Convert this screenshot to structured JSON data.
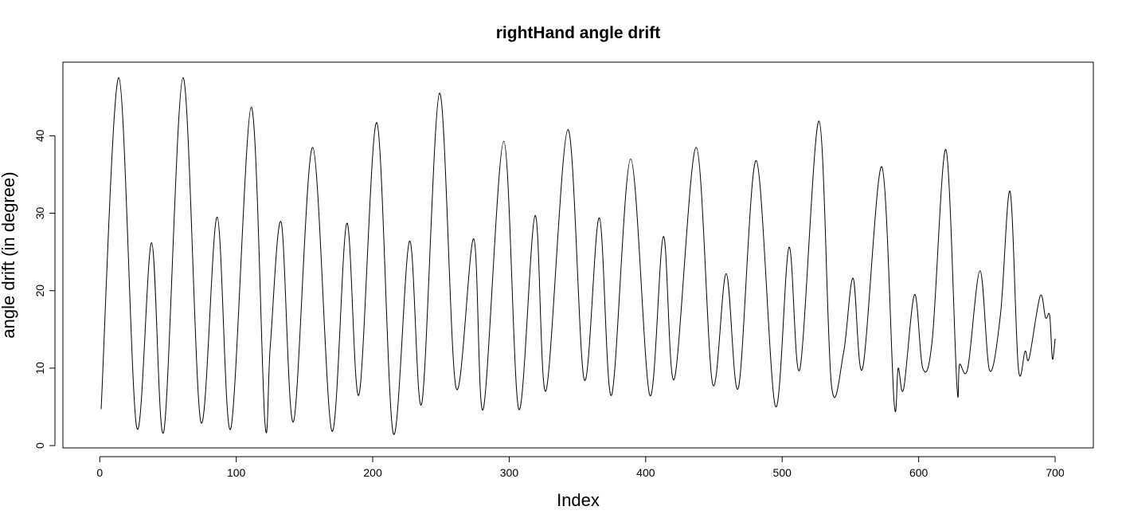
{
  "chart_data": {
    "type": "line",
    "title": "rightHand angle drift",
    "x_label": "Index",
    "y_label": "angle drift  (in degree)",
    "x": [
      1,
      14,
      27,
      38,
      47,
      61,
      74,
      86,
      96,
      111,
      121,
      125,
      133,
      142,
      156,
      170,
      181,
      190,
      203,
      215,
      227,
      236,
      249,
      261,
      274,
      281,
      296,
      307,
      319,
      327,
      343,
      355,
      366,
      375,
      389,
      403,
      413,
      421,
      437,
      449,
      459,
      468,
      481,
      495,
      505,
      513,
      527,
      536,
      545,
      552,
      559,
      573,
      582,
      585,
      589,
      597,
      603,
      610,
      620,
      628,
      630,
      636,
      645,
      652,
      660,
      667,
      673,
      678,
      681,
      689,
      693,
      696,
      698,
      700
    ],
    "series": [
      {
        "name": "rightHand",
        "color": "#000000",
        "values": [
          4.7,
          47.5,
          2.4,
          26.2,
          1.9,
          47.5,
          3.1,
          29.5,
          2.2,
          43.7,
          3,
          13,
          28.8,
          3.1,
          38.5,
          1.9,
          28.7,
          6.6,
          41.7,
          1.6,
          26.4,
          5.5,
          45.5,
          7.5,
          26.7,
          4.7,
          39.3,
          4.7,
          29.7,
          7.1,
          40.8,
          8.5,
          29.4,
          6.5,
          37,
          6.5,
          27,
          8.6,
          38.5,
          8,
          22.2,
          7.5,
          36.8,
          5.1,
          25.6,
          9.9,
          41.9,
          8,
          12,
          21.6,
          10,
          36,
          5.6,
          10,
          7.3,
          19.5,
          10,
          13.7,
          38.2,
          7.8,
          10.5,
          10,
          22.6,
          9.7,
          17,
          32.8,
          10.1,
          12.2,
          11.3,
          19.3,
          16.5,
          16.8,
          11.2,
          13.8
        ]
      }
    ],
    "xlim": [
      -27,
      728
    ],
    "ylim": [
      -0.3,
      49.5
    ],
    "xticks": [
      0,
      100,
      200,
      300,
      400,
      500,
      600,
      700
    ],
    "yticks": [
      0,
      10,
      20,
      30,
      40
    ]
  }
}
